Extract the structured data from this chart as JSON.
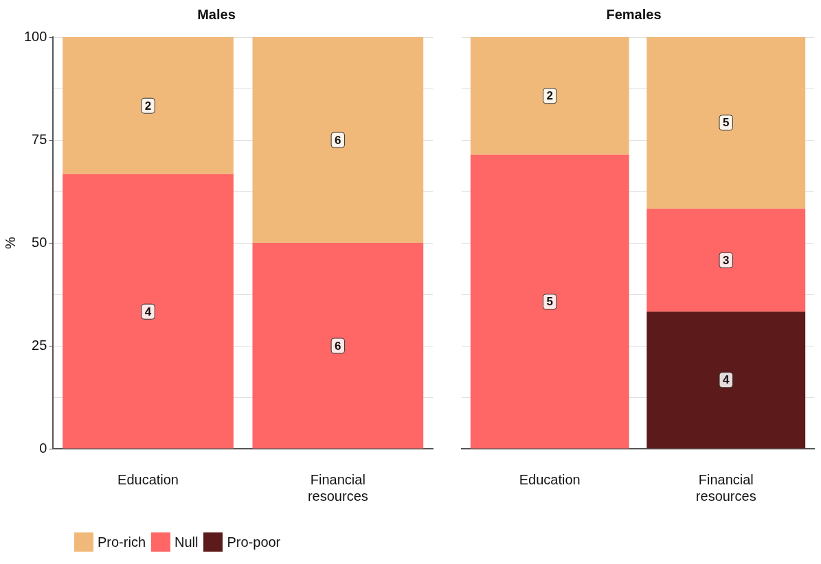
{
  "chart_data": [
    {
      "type": "bar",
      "title": "Males",
      "ylabel": "%",
      "categories": [
        "Education",
        "Financial resources"
      ],
      "stacked": true,
      "ylim": [
        0,
        100
      ],
      "yticks": [
        0,
        {
          "value": 12.5,
          "label": null
        },
        25,
        {
          "value": 37.5,
          "label": null
        },
        50,
        {
          "value": 62.5,
          "label": null
        },
        75,
        {
          "value": 87.5,
          "label": null
        },
        100
      ],
      "grid": "y",
      "legend": "bottom left",
      "series": [
        {
          "name": "Pro-poor",
          "color": "#5c1a1a",
          "values": [
            null,
            null
          ]
        },
        {
          "name": "Null",
          "color": "#ff6666",
          "values": [
            66.7,
            50
          ]
        },
        {
          "name": "Pro-rich",
          "color": "#f0b97a",
          "values": [
            33.3,
            50
          ]
        }
      ],
      "annotations": [
        {
          "text": "4",
          "x": "Education",
          "y": 33.3
        },
        {
          "text": "2",
          "x": "Education",
          "y": 83.3
        },
        {
          "text": "6",
          "x": "Financial resources",
          "y": 25
        },
        {
          "text": "6",
          "x": "Financial resources",
          "y": 75
        }
      ]
    },
    {
      "type": "bar",
      "title": "Females",
      "categories": [
        "Education",
        "Financial resources"
      ],
      "stacked": true,
      "ylim": [
        0,
        100
      ],
      "yticks": [
        0,
        {
          "value": 12.5,
          "label": null
        },
        25,
        {
          "value": 37.5,
          "label": null
        },
        50,
        {
          "value": 62.5,
          "label": null
        },
        75,
        {
          "value": 87.5,
          "label": null
        },
        100
      ],
      "grid": "y",
      "tick_labels": "x",
      "series": [
        {
          "color": "#5c1a1a",
          "values": [
            null,
            33.3
          ]
        },
        {
          "color": "#ff6666",
          "values": [
            71.4,
            25
          ]
        },
        {
          "color": "#f0b97a",
          "values": [
            28.6,
            41.7
          ]
        }
      ],
      "annotations": [
        {
          "text": "5",
          "x": "Education",
          "y": 35.7
        },
        {
          "text": "2",
          "x": "Education",
          "y": 85.7
        },
        {
          "text": "4",
          "x": "Financial resources",
          "y": 16.7
        },
        {
          "text": "3",
          "x": "Financial resources",
          "y": 45.8
        },
        {
          "text": "5",
          "x": "Financial resources",
          "y": 79.2
        }
      ]
    }
  ]
}
